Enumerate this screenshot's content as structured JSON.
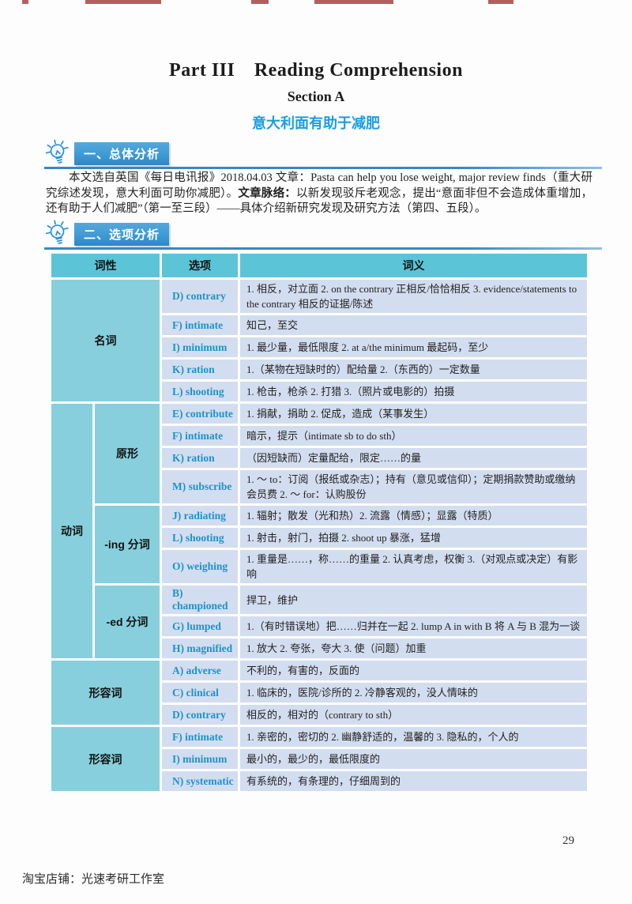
{
  "page": {
    "title": "Part III　Reading Comprehension",
    "subtitle": "Section A",
    "topic_cn": "意大利面有助于减肥",
    "page_number": "29",
    "footer": "淘宝店铺：光速考研工作室"
  },
  "colors": {
    "header_blue": "#3e9bd5",
    "underline_blue": "#3787c7",
    "topic_blue": "#1b9de2",
    "table_teal": "#5bc4d6",
    "poscol_teal": "#87cfdd",
    "cell_blue": "#d3ddf0",
    "option_blue": "#1d93c8",
    "artifact_red": "#a03737"
  },
  "sections": [
    {
      "heading": "一、总体分析",
      "icon": "lightbulb-icon"
    },
    {
      "heading": "二、选项分析",
      "icon": "lightbulb-icon"
    }
  ],
  "overview": {
    "segments": [
      {
        "bold": false,
        "text": "本文选自英国《每日电讯报》2018.04.03 文章：Pasta can help you lose weight, major review finds（重大研究综述发现，意大利面可助你减肥）。"
      },
      {
        "bold": true,
        "text": "文章脉络："
      },
      {
        "bold": false,
        "text": "以新发现驳斥老观念，提出“意面非但不会造成体重增加，还有助于人们减肥”（第一至三段）——具体介绍新研究发现及研究方法（第四、五段）。"
      }
    ]
  },
  "table": {
    "headers": [
      "词性",
      "选项",
      "词义"
    ],
    "groups": [
      {
        "pos": "名词",
        "rows": [
          {
            "option": "D) contrary",
            "meaning": "1. 相反，对立面 2. on the contrary 正相反/恰恰相反 3. evidence/statements to the contrary 相反的证据/陈述"
          },
          {
            "option": "F) intimate",
            "meaning": "知己，至交"
          },
          {
            "option": "I) minimum",
            "meaning": "1. 最少量，最低限度 2. at a/the minimum 最起码，至少"
          },
          {
            "option": "K) ration",
            "meaning": "1.（某物在短缺时的）配给量 2.（东西的）一定数量"
          },
          {
            "option": "L) shooting",
            "meaning": "1. 枪击，枪杀 2. 打猎 3.（照片或电影的）拍摄"
          }
        ]
      },
      {
        "pos": "动词",
        "subgroups": [
          {
            "label": "原形",
            "rows": [
              {
                "option": "E) contribute",
                "meaning": "1. 捐献，捐助 2. 促成，造成（某事发生）"
              },
              {
                "option": "F) intimate",
                "meaning": "暗示，提示（intimate sb to do sth）"
              },
              {
                "option": "K) ration",
                "meaning": "（因短缺而）定量配给，限定……的量"
              },
              {
                "option": "M) subscribe",
                "meaning": "1. ～ to：订阅（报纸或杂志）；持有（意见或信仰）；定期捐款赞助或缴纳会员费 2. ～ for：认购股份"
              }
            ]
          },
          {
            "label": "-ing 分词",
            "rows": [
              {
                "option": "J) radiating",
                "meaning": "1. 辐射；散发（光和热）2. 流露（情感）；显露（特质）"
              },
              {
                "option": "L) shooting",
                "meaning": "1. 射击，射门，拍摄 2. shoot up 暴涨，猛增"
              },
              {
                "option": "O) weighing",
                "meaning": "1. 重量是……，称……的重量 2. 认真考虑，权衡 3.（对观点或决定）有影响"
              }
            ]
          },
          {
            "label": "-ed 分词",
            "rows": [
              {
                "option": "B) championed",
                "meaning": "捍卫，维护"
              },
              {
                "option": "G) lumped",
                "meaning": "1.（有时错误地）把……归并在一起 2. lump A in with B 将 A 与 B 混为一谈"
              },
              {
                "option": "H) magnified",
                "meaning": "1. 放大 2. 夸张，夸大 3. 使（问题）加重"
              }
            ]
          }
        ]
      },
      {
        "pos": "形容词",
        "rows": [
          {
            "option": "A) adverse",
            "meaning": "不利的，有害的，反面的"
          },
          {
            "option": "C) clinical",
            "meaning": "1. 临床的，医院/诊所的 2. 冷静客观的，没人情味的"
          },
          {
            "option": "D) contrary",
            "meaning": "相反的，相对的（contrary to sth）"
          }
        ]
      },
      {
        "pos": "形容词",
        "rows": [
          {
            "option": "F) intimate",
            "meaning": "1. 亲密的，密切的 2. 幽静舒适的，温馨的 3. 隐私的，个人的"
          },
          {
            "option": "I) minimum",
            "meaning": "最小的，最少的，最低限度的"
          },
          {
            "option": "N) systematic",
            "meaning": "有系统的，有条理的，仔细周到的"
          }
        ]
      }
    ]
  }
}
